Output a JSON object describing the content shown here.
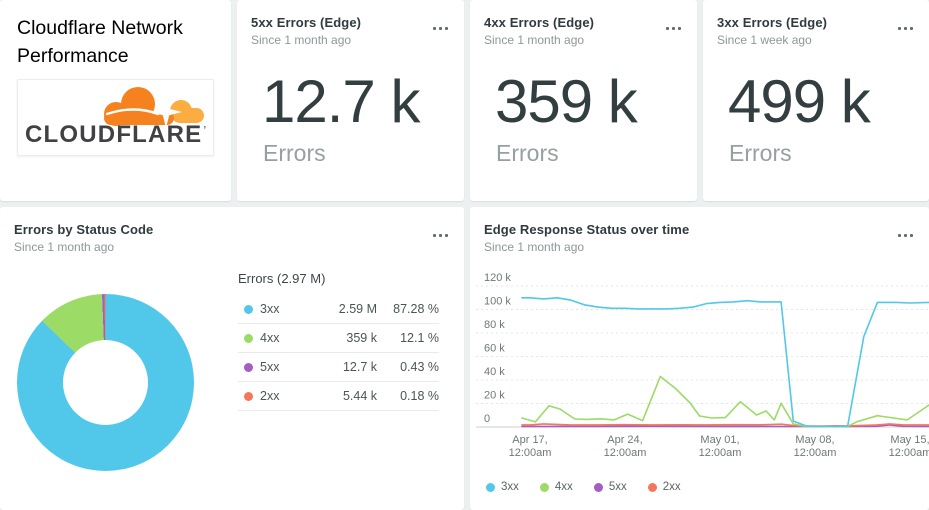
{
  "page": {
    "title": "Cloudflare Network Performance",
    "logo_text": "CLOUDFLARE",
    "logo_mark": "’"
  },
  "billboards": [
    {
      "title": "5xx Errors (Edge)",
      "since": "Since 1 month ago",
      "value": "12.7 k",
      "caption": "Errors"
    },
    {
      "title": "4xx Errors (Edge)",
      "since": "Since 1 month ago",
      "value": "359 k",
      "caption": "Errors"
    },
    {
      "title": "3xx Errors (Edge)",
      "since": "Since 1 week ago",
      "value": "499 k",
      "caption": "Errors"
    }
  ],
  "palette": {
    "3xx": "#51c8ea",
    "4xx": "#9bdb66",
    "5xx": "#a55cc4",
    "2xx": "#f4775c"
  },
  "chart_data": [
    {
      "type": "pie",
      "donut": true,
      "title": "Errors by Status Code",
      "subtitle": "Since 1 month ago",
      "legend_header": "Errors (2.97 M)",
      "total": "2.97 M",
      "legend_position": "right",
      "slices": [
        {
          "label": "3xx",
          "value": "2.59 M",
          "percent": 87.28,
          "percent_label": "87.28 %",
          "color": "#51c8ea"
        },
        {
          "label": "4xx",
          "value": "359 k",
          "percent": 12.1,
          "percent_label": "12.1 %",
          "color": "#9bdb66"
        },
        {
          "label": "5xx",
          "value": "12.7 k",
          "percent": 0.43,
          "percent_label": "0.43 %",
          "color": "#a55cc4"
        },
        {
          "label": "2xx",
          "value": "5.44 k",
          "percent": 0.18,
          "percent_label": "0.18 %",
          "color": "#f4775c"
        }
      ]
    },
    {
      "type": "line",
      "title": "Edge Response Status over time",
      "subtitle": "Since 1 month ago",
      "grid": "horizontal-dashed",
      "legend_position": "bottom",
      "y_axis": {
        "unit": "errors, thousands",
        "range": [
          0,
          120
        ],
        "ticks": [
          {
            "v": 0,
            "label": "0"
          },
          {
            "v": 20,
            "label": "20 k"
          },
          {
            "v": 40,
            "label": "40 k"
          },
          {
            "v": 60,
            "label": "60 k"
          },
          {
            "v": 80,
            "label": "80 k"
          },
          {
            "v": 100,
            "label": "100 k"
          },
          {
            "v": 120,
            "label": "120 k"
          }
        ]
      },
      "x_axis": {
        "unit": "days since Apr 16, 12:00am",
        "ticks": [
          {
            "day": 1,
            "label": "Apr 17,",
            "sub": "12:00am"
          },
          {
            "day": 8,
            "label": "Apr 24,",
            "sub": "12:00am"
          },
          {
            "day": 15,
            "label": "May 01,",
            "sub": "12:00am"
          },
          {
            "day": 22,
            "label": "May 08,",
            "sub": "12:00am"
          },
          {
            "day": 29,
            "label": "May 15,",
            "sub": "12:00am"
          }
        ]
      },
      "series": [
        {
          "name": "3xx",
          "color": "#51c8ea",
          "points": [
            [
              0.4,
              110
            ],
            [
              1,
              110
            ],
            [
              2,
              109
            ],
            [
              3,
              110
            ],
            [
              4,
              108
            ],
            [
              5,
              104
            ],
            [
              6,
              102
            ],
            [
              7,
              101
            ],
            [
              8,
              101
            ],
            [
              9,
              100.5
            ],
            [
              10,
              100.5
            ],
            [
              11,
              100.5
            ],
            [
              12,
              101
            ],
            [
              13,
              102
            ],
            [
              14,
              105
            ],
            [
              15,
              106
            ],
            [
              16,
              106.5
            ],
            [
              17,
              107.5
            ],
            [
              18,
              106.5
            ],
            [
              19,
              106.5
            ],
            [
              19.5,
              106.5
            ],
            [
              20.4,
              5
            ],
            [
              21.4,
              0.8
            ],
            [
              22.5,
              0.5
            ],
            [
              23.5,
              0.5
            ],
            [
              24.4,
              0.5
            ],
            [
              25.6,
              77
            ],
            [
              26.6,
              106
            ],
            [
              28,
              106
            ],
            [
              29,
              105.5
            ],
            [
              30.4,
              106
            ]
          ]
        },
        {
          "name": "4xx",
          "color": "#9bdb66",
          "points": [
            [
              0.4,
              7.7
            ],
            [
              1.4,
              4.3
            ],
            [
              2.4,
              18
            ],
            [
              3.2,
              15.3
            ],
            [
              4.3,
              6.8
            ],
            [
              5.2,
              6.5
            ],
            [
              6.2,
              7
            ],
            [
              7.2,
              6
            ],
            [
              8.2,
              11
            ],
            [
              9.3,
              5.4
            ],
            [
              10.6,
              43
            ],
            [
              11.7,
              33
            ],
            [
              12.8,
              20.4
            ],
            [
              13.5,
              9.4
            ],
            [
              14.4,
              7.7
            ],
            [
              15.4,
              8
            ],
            [
              16.5,
              21.5
            ],
            [
              17.7,
              10.2
            ],
            [
              18.4,
              13.6
            ],
            [
              19,
              6
            ],
            [
              19.5,
              20.2
            ],
            [
              20.4,
              2.6
            ],
            [
              21.3,
              0.5
            ],
            [
              22.5,
              0.3
            ],
            [
              23.5,
              0.3
            ],
            [
              24.4,
              0.5
            ],
            [
              25.1,
              4.5
            ],
            [
              26.6,
              9.6
            ],
            [
              28.3,
              6.8
            ],
            [
              28.8,
              6
            ],
            [
              30.4,
              18.7
            ]
          ]
        },
        {
          "name": "5xx",
          "color": "#a55cc4",
          "points": [
            [
              0.4,
              0.5
            ],
            [
              5,
              0.5
            ],
            [
              10,
              0.6
            ],
            [
              15,
              0.5
            ],
            [
              20,
              0.4
            ],
            [
              24,
              0.4
            ],
            [
              26.5,
              0.6
            ],
            [
              27.5,
              1.8
            ],
            [
              28.5,
              0.6
            ],
            [
              30.4,
              0.5
            ]
          ]
        },
        {
          "name": "2xx",
          "color": "#f4775c",
          "points": [
            [
              0.4,
              1.8
            ],
            [
              1,
              1.8
            ],
            [
              2,
              2.6
            ],
            [
              3,
              2.2
            ],
            [
              4,
              1.8
            ],
            [
              6,
              1.8
            ],
            [
              8,
              2
            ],
            [
              10,
              1.8
            ],
            [
              12,
              1.9
            ],
            [
              14,
              1.8
            ],
            [
              16,
              2
            ],
            [
              18,
              1.9
            ],
            [
              19.5,
              2.4
            ],
            [
              20.4,
              1.4
            ],
            [
              21.4,
              0.8
            ],
            [
              22.5,
              0.8
            ],
            [
              23.5,
              1
            ],
            [
              24.4,
              0.9
            ],
            [
              25.5,
              1.4
            ],
            [
              26.6,
              1.8
            ],
            [
              27.5,
              2.6
            ],
            [
              28.5,
              1.8
            ],
            [
              30.4,
              1.8
            ]
          ]
        }
      ]
    }
  ]
}
